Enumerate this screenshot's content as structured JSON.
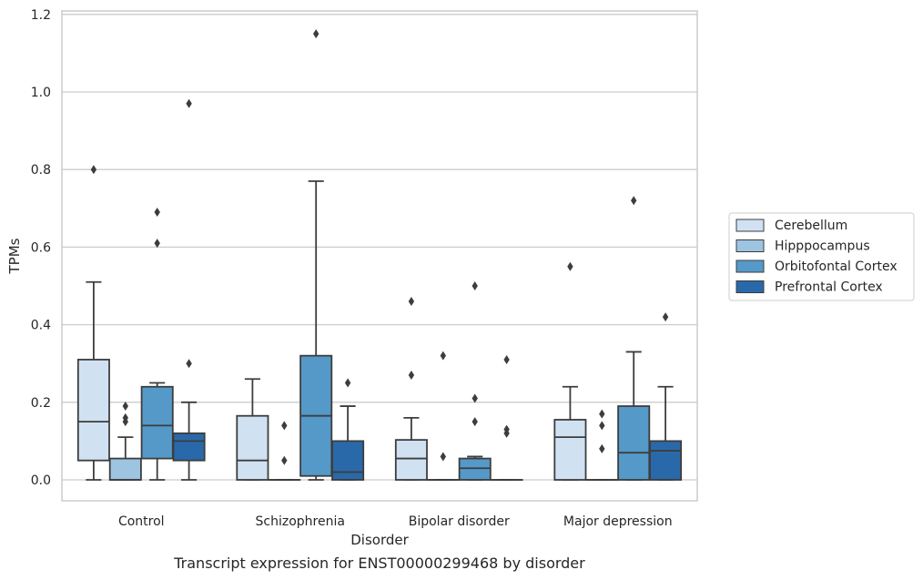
{
  "chart_data": {
    "type": "box",
    "caption": "Transcript expression for ENST00000299468 by disorder",
    "xlabel": "Disorder",
    "ylabel": "TPMs",
    "ylim": [
      -0.055,
      1.21
    ],
    "yticks": [
      0.0,
      0.2,
      0.4,
      0.6,
      0.8,
      1.0,
      1.2
    ],
    "ytick_labels": [
      "0.0",
      "0.2",
      "0.4",
      "0.6",
      "0.8",
      "1.0",
      "1.2"
    ],
    "grid": "horizontal",
    "legend_position": "right",
    "categories": [
      "Control",
      "Schizophrenia",
      "Bipolar disorder",
      "Major depression"
    ],
    "series": [
      {
        "name": "Cerebellum",
        "color": "#d0e1f2",
        "boxes": [
          {
            "whislo": 0.0,
            "q1": 0.05,
            "med": 0.15,
            "q3": 0.31,
            "whishi": 0.51,
            "fliers": [
              0.8
            ]
          },
          {
            "whislo": 0.0,
            "q1": 0.0,
            "med": 0.05,
            "q3": 0.165,
            "whishi": 0.26,
            "fliers": []
          },
          {
            "whislo": 0.0,
            "q1": 0.0,
            "med": 0.055,
            "q3": 0.103,
            "whishi": 0.16,
            "fliers": [
              0.27,
              0.46
            ]
          },
          {
            "whislo": 0.0,
            "q1": 0.0,
            "med": 0.11,
            "q3": 0.155,
            "whishi": 0.24,
            "fliers": [
              0.55
            ]
          }
        ]
      },
      {
        "name": "Hipppocampus",
        "color": "#9dc4e0",
        "boxes": [
          {
            "whislo": 0.0,
            "q1": 0.0,
            "med": 0.0,
            "q3": 0.055,
            "whishi": 0.11,
            "fliers": [
              0.15,
              0.16,
              0.19
            ]
          },
          {
            "whislo": 0.0,
            "q1": 0.0,
            "med": 0.0,
            "q3": 0.0,
            "whishi": 0.0,
            "fliers": [
              0.05,
              0.14
            ]
          },
          {
            "whislo": 0.0,
            "q1": 0.0,
            "med": 0.0,
            "q3": 0.0,
            "whishi": 0.0,
            "fliers": [
              0.06,
              0.32
            ]
          },
          {
            "whislo": 0.0,
            "q1": 0.0,
            "med": 0.0,
            "q3": 0.0,
            "whishi": 0.0,
            "fliers": [
              0.08,
              0.14,
              0.17
            ]
          }
        ]
      },
      {
        "name": "Orbitofontal Cortex",
        "color": "#5599c8",
        "boxes": [
          {
            "whislo": 0.0,
            "q1": 0.055,
            "med": 0.14,
            "q3": 0.24,
            "whishi": 0.25,
            "fliers": [
              0.61,
              0.69
            ]
          },
          {
            "whislo": 0.0,
            "q1": 0.01,
            "med": 0.165,
            "q3": 0.32,
            "whishi": 0.77,
            "fliers": [
              1.15
            ]
          },
          {
            "whislo": 0.0,
            "q1": 0.0,
            "med": 0.03,
            "q3": 0.055,
            "whishi": 0.06,
            "fliers": [
              0.15,
              0.21,
              0.5
            ]
          },
          {
            "whislo": 0.0,
            "q1": 0.0,
            "med": 0.07,
            "q3": 0.19,
            "whishi": 0.33,
            "fliers": [
              0.72
            ]
          }
        ]
      },
      {
        "name": "Prefrontal Cortex",
        "color": "#2a69a9",
        "boxes": [
          {
            "whislo": 0.0,
            "q1": 0.05,
            "med": 0.1,
            "q3": 0.12,
            "whishi": 0.2,
            "fliers": [
              0.3,
              0.97
            ]
          },
          {
            "whislo": 0.0,
            "q1": 0.0,
            "med": 0.02,
            "q3": 0.1,
            "whishi": 0.19,
            "fliers": [
              0.25
            ]
          },
          {
            "whislo": 0.0,
            "q1": 0.0,
            "med": 0.0,
            "q3": 0.0,
            "whishi": 0.0,
            "fliers": [
              0.12,
              0.13,
              0.31
            ]
          },
          {
            "whislo": 0.0,
            "q1": 0.0,
            "med": 0.075,
            "q3": 0.1,
            "whishi": 0.24,
            "fliers": [
              0.42
            ]
          }
        ]
      }
    ]
  }
}
